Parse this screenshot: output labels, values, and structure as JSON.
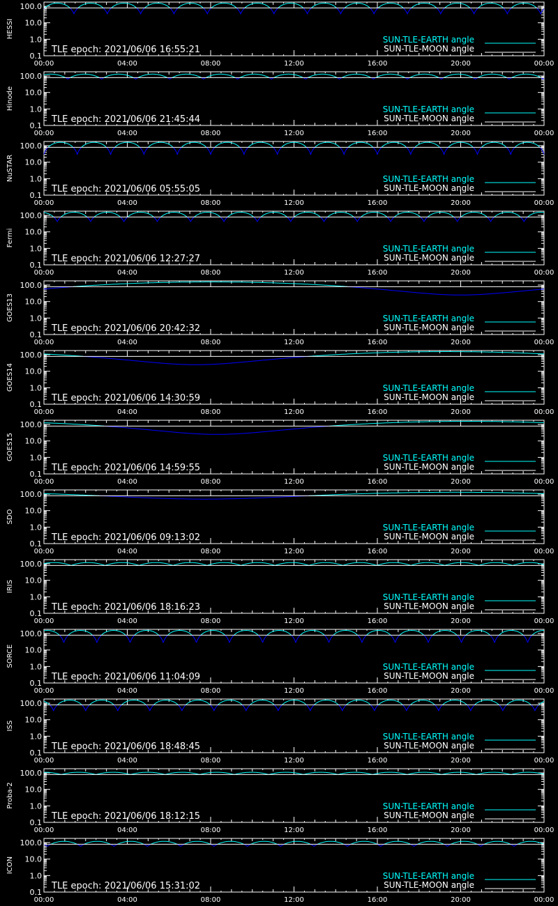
{
  "colors": {
    "background": "#000000",
    "axes": "#ffffff",
    "earth": "#00ffff",
    "earth_dip": "#0000ff",
    "moon": "#ffffff"
  },
  "x_tick_labels": [
    "00:00",
    "04:00",
    "08:00",
    "12:00",
    "16:00",
    "20:00",
    "00:00"
  ],
  "y_tick_labels": [
    "0.1",
    "1.0",
    "10.0",
    "100.0"
  ],
  "legend": {
    "earth_label": "SUN-TLE-EARTH angle",
    "moon_label": "SUN-TLE-MOON angle"
  },
  "chart_data": [
    {
      "type": "line",
      "panel": "HESSI",
      "epoch_text": "TLE epoch: 2021/06/06 16:55:21",
      "x_range_hours": [
        0,
        24
      ],
      "ylim": [
        0.1,
        180
      ],
      "y_scale": "log",
      "series": [
        {
          "name": "SUN-TLE-EARTH angle",
          "pattern": "orbit",
          "period_hours": 1.6,
          "max": 155,
          "min": 35,
          "phase": 0.1
        },
        {
          "name": "SUN-TLE-MOON angle",
          "pattern": "flat",
          "value": 80
        }
      ]
    },
    {
      "type": "line",
      "panel": "Hinode",
      "epoch_text": "TLE epoch: 2021/06/06 21:45:44",
      "x_range_hours": [
        0,
        24
      ],
      "ylim": [
        0.1,
        180
      ],
      "y_scale": "log",
      "series": [
        {
          "name": "SUN-TLE-EARTH angle",
          "pattern": "orbit",
          "period_hours": 1.63,
          "max": 130,
          "min": 65,
          "phase": 0.3
        },
        {
          "name": "SUN-TLE-MOON angle",
          "pattern": "flat",
          "value": 80
        }
      ]
    },
    {
      "type": "line",
      "panel": "NuSTAR",
      "epoch_text": "TLE epoch: 2021/06/06 05:55:05",
      "x_range_hours": [
        0,
        24
      ],
      "ylim": [
        0.1,
        180
      ],
      "y_scale": "log",
      "series": [
        {
          "name": "SUN-TLE-EARTH angle",
          "pattern": "orbit",
          "period_hours": 1.6,
          "max": 160,
          "min": 30,
          "phase": 0.0
        },
        {
          "name": "SUN-TLE-MOON angle",
          "pattern": "flat",
          "value": 80
        }
      ]
    },
    {
      "type": "line",
      "panel": "Fermi",
      "epoch_text": "TLE epoch: 2021/06/06 12:27:27",
      "x_range_hours": [
        0,
        24
      ],
      "ylim": [
        0.1,
        180
      ],
      "y_scale": "log",
      "series": [
        {
          "name": "SUN-TLE-EARTH angle",
          "pattern": "orbit",
          "period_hours": 1.6,
          "max": 155,
          "min": 42,
          "phase": 0.6
        },
        {
          "name": "SUN-TLE-MOON angle",
          "pattern": "flat",
          "value": 80
        }
      ]
    },
    {
      "type": "line",
      "panel": "GOES13",
      "epoch_text": "TLE epoch: 2021/06/06 20:42:32",
      "x_range_hours": [
        0,
        24
      ],
      "ylim": [
        0.1,
        180
      ],
      "y_scale": "log",
      "series": [
        {
          "name": "SUN-TLE-EARTH angle",
          "pattern": "daily",
          "period_hours": 24,
          "max": 155,
          "min": 25,
          "min_at_hours": 20
        },
        {
          "name": "SUN-TLE-MOON angle",
          "pattern": "flat",
          "value": 80
        }
      ]
    },
    {
      "type": "line",
      "panel": "GOES14",
      "epoch_text": "TLE epoch: 2021/06/06 14:30:59",
      "x_range_hours": [
        0,
        24
      ],
      "ylim": [
        0.1,
        180
      ],
      "y_scale": "log",
      "series": [
        {
          "name": "SUN-TLE-EARTH angle",
          "pattern": "daily",
          "period_hours": 24,
          "max": 155,
          "min": 25,
          "min_at_hours": 7.3
        },
        {
          "name": "SUN-TLE-MOON angle",
          "pattern": "flat",
          "value": 80
        }
      ]
    },
    {
      "type": "line",
      "panel": "GOES15",
      "epoch_text": "TLE epoch: 2021/06/06 14:59:55",
      "x_range_hours": [
        0,
        24
      ],
      "ylim": [
        0.1,
        180
      ],
      "y_scale": "log",
      "series": [
        {
          "name": "SUN-TLE-EARTH angle",
          "pattern": "daily",
          "period_hours": 24,
          "max": 155,
          "min": 25,
          "min_at_hours": 8.3
        },
        {
          "name": "SUN-TLE-MOON angle",
          "pattern": "flat",
          "value": 80
        }
      ]
    },
    {
      "type": "line",
      "panel": "SDO",
      "epoch_text": "TLE epoch: 2021/06/06 09:13:02",
      "x_range_hours": [
        0,
        24
      ],
      "ylim": [
        0.1,
        180
      ],
      "y_scale": "log",
      "series": [
        {
          "name": "SUN-TLE-EARTH angle",
          "pattern": "daily",
          "period_hours": 24,
          "max": 130,
          "min": 50,
          "min_at_hours": 7.7
        },
        {
          "name": "SUN-TLE-MOON angle",
          "pattern": "flat",
          "value": 80
        }
      ]
    },
    {
      "type": "line",
      "panel": "IRIS",
      "epoch_text": "TLE epoch: 2021/06/06 18:16:23",
      "x_range_hours": [
        0,
        24
      ],
      "ylim": [
        0.1,
        180
      ],
      "y_scale": "log",
      "series": [
        {
          "name": "SUN-TLE-EARTH angle",
          "pattern": "orbit",
          "period_hours": 1.63,
          "max": 120,
          "min": 80,
          "phase": 0.2
        },
        {
          "name": "SUN-TLE-MOON angle",
          "pattern": "flat",
          "value": 80
        }
      ]
    },
    {
      "type": "line",
      "panel": "SORCE",
      "epoch_text": "TLE epoch: 2021/06/06 11:04:09",
      "x_range_hours": [
        0,
        24
      ],
      "ylim": [
        0.1,
        180
      ],
      "y_scale": "log",
      "series": [
        {
          "name": "SUN-TLE-EARTH angle",
          "pattern": "orbit",
          "period_hours": 1.59,
          "max": 155,
          "min": 28,
          "phase": 0.4
        },
        {
          "name": "SUN-TLE-MOON angle",
          "pattern": "flat",
          "value": 80
        }
      ]
    },
    {
      "type": "line",
      "panel": "ISS",
      "epoch_text": "TLE epoch: 2021/06/06 18:48:45",
      "x_range_hours": [
        0,
        24
      ],
      "ylim": [
        0.1,
        180
      ],
      "y_scale": "log",
      "series": [
        {
          "name": "SUN-TLE-EARTH angle",
          "pattern": "orbit",
          "period_hours": 1.54,
          "max": 155,
          "min": 35,
          "phase": 0.7
        },
        {
          "name": "SUN-TLE-MOON angle",
          "pattern": "flat",
          "value": 80
        }
      ]
    },
    {
      "type": "line",
      "panel": "Proba-2",
      "epoch_text": "TLE epoch: 2021/06/06 18:12:15",
      "x_range_hours": [
        0,
        24
      ],
      "ylim": [
        0.1,
        180
      ],
      "y_scale": "log",
      "series": [
        {
          "name": "SUN-TLE-EARTH angle",
          "pattern": "orbit",
          "period_hours": 1.66,
          "max": 110,
          "min": 80,
          "phase": 0.5
        },
        {
          "name": "SUN-TLE-MOON angle",
          "pattern": "flat",
          "value": 80
        }
      ]
    },
    {
      "type": "line",
      "panel": "ICON",
      "epoch_text": "TLE epoch: 2021/06/06 15:31:02",
      "x_range_hours": [
        0,
        24
      ],
      "ylim": [
        0.1,
        180
      ],
      "y_scale": "log",
      "series": [
        {
          "name": "SUN-TLE-EARTH angle",
          "pattern": "orbit",
          "period_hours": 1.6,
          "max": 120,
          "min": 60,
          "phase": 0.9
        },
        {
          "name": "SUN-TLE-MOON angle",
          "pattern": "flat",
          "value": 80
        }
      ]
    }
  ]
}
